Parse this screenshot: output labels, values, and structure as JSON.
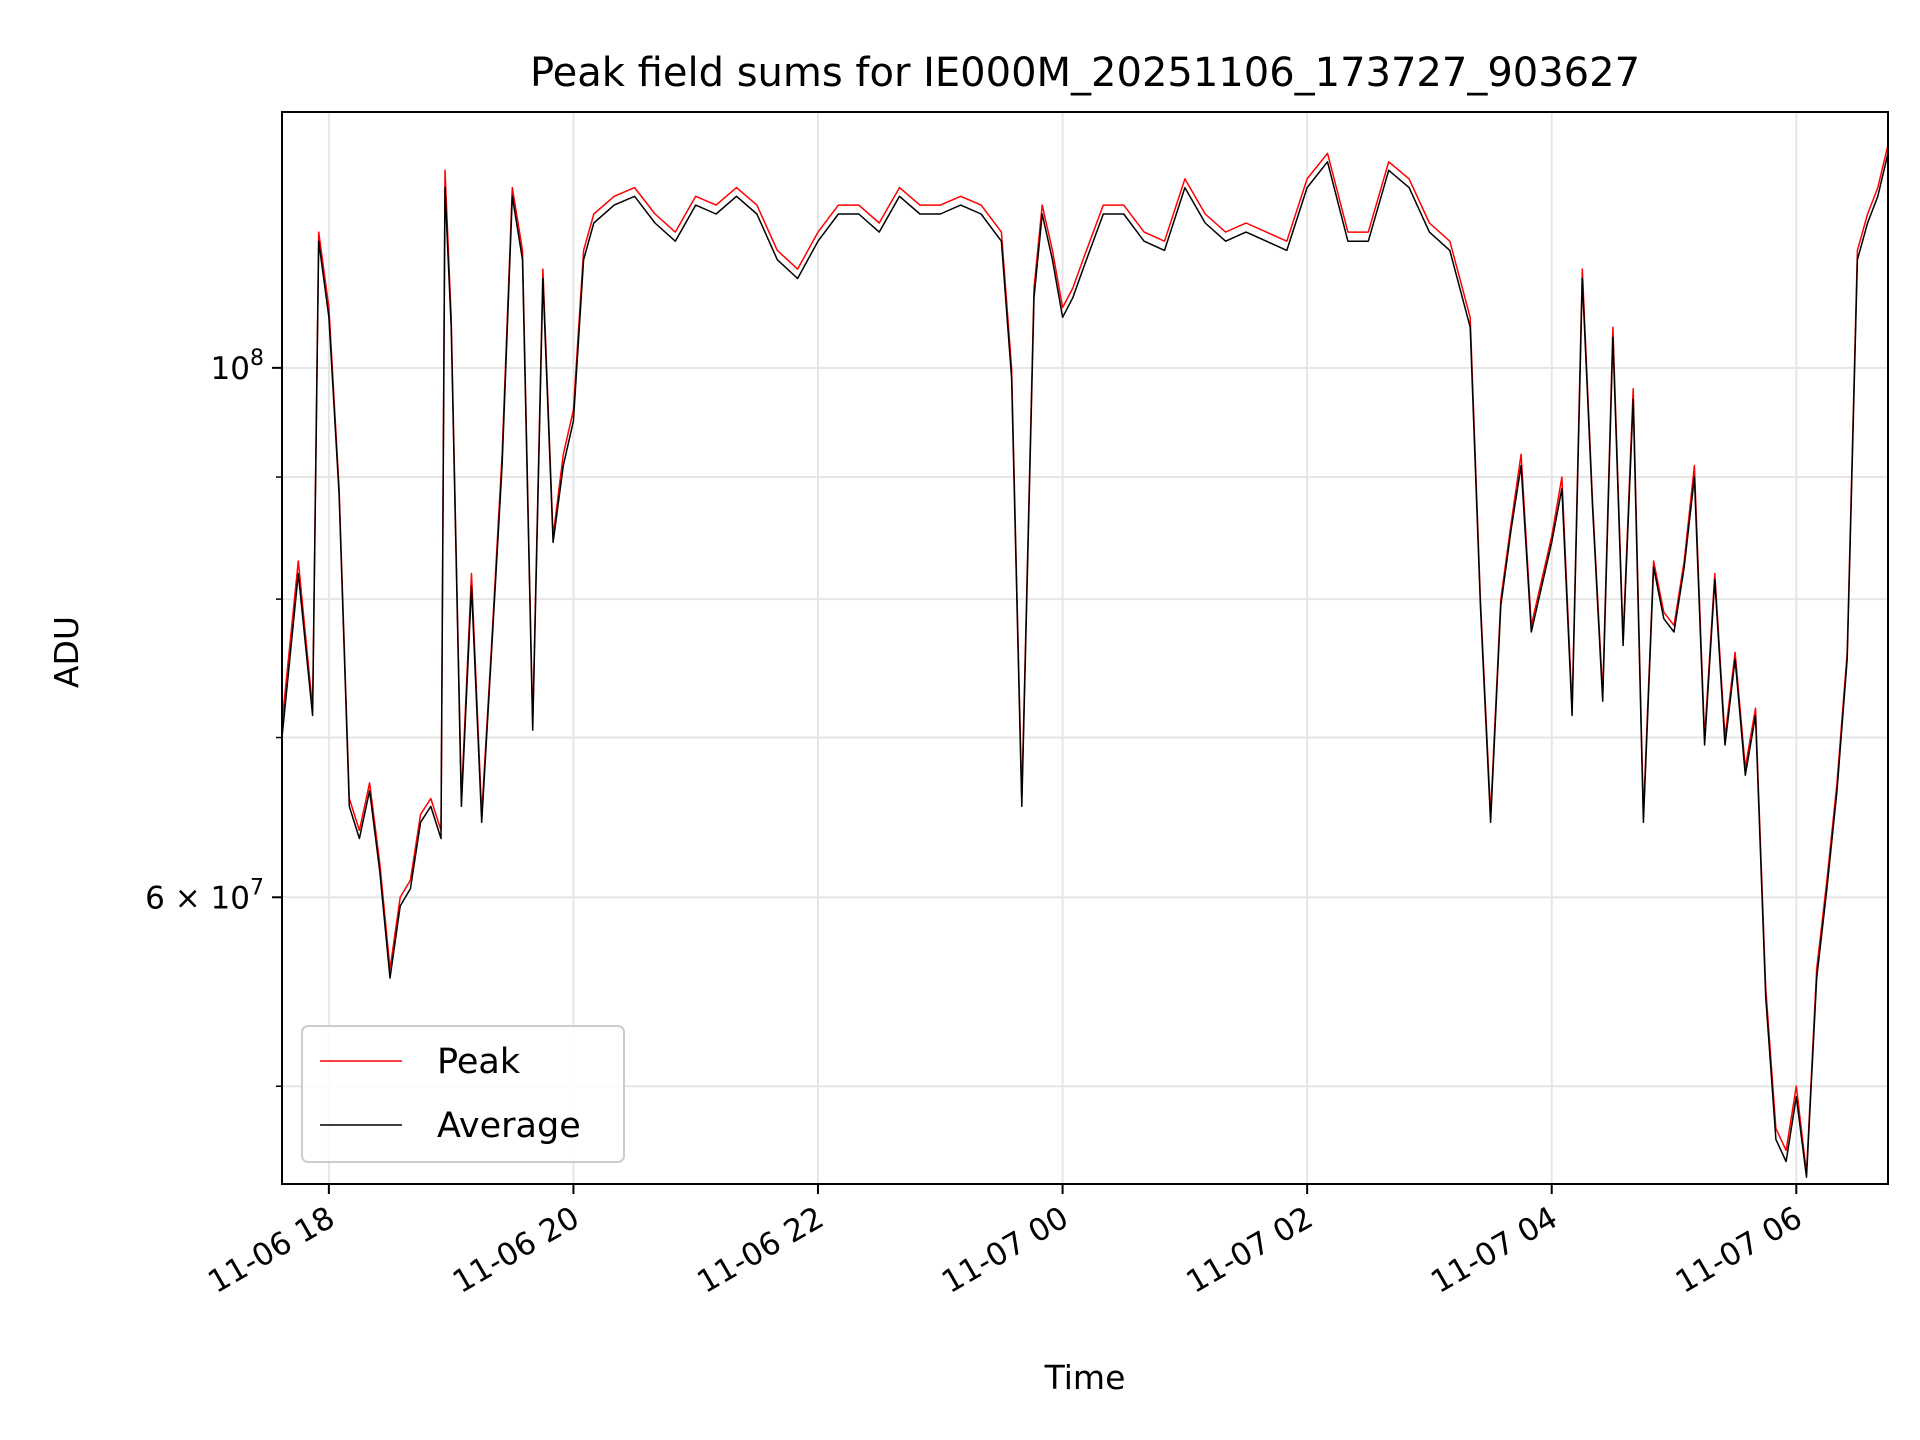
{
  "chart_data": {
    "type": "line",
    "title": "Peak field sums for IE000M_20251106_173727_903627",
    "xlabel": "Time",
    "ylabel": "ADU",
    "x_axis": {
      "kind": "datetime",
      "range": [
        "2025-11-06 17:37",
        "2025-11-07 06:45"
      ],
      "tick_labels": [
        "11-06 18",
        "11-06 20",
        "11-06 22",
        "11-07 00",
        "11-07 02",
        "11-07 04",
        "11-07 06"
      ],
      "tick_times": [
        "2025-11-06 18:00",
        "2025-11-06 20:00",
        "2025-11-06 22:00",
        "2025-11-07 00:00",
        "2025-11-07 02:00",
        "2025-11-07 04:00",
        "2025-11-07 06:00"
      ]
    },
    "y_axis": {
      "scale": "log",
      "range": [
        45500000,
        128000000
      ],
      "major_ticks": [
        {
          "value": 100000000,
          "label_base": "10",
          "label_exp": "8"
        },
        {
          "value": 60000000,
          "label_base": "6 × 10",
          "label_exp": "7"
        }
      ],
      "minor_ticks": [
        50000000,
        70000000,
        80000000,
        90000000
      ]
    },
    "grid": true,
    "legend": {
      "placement": "lower-left"
    },
    "series": [
      {
        "name": "Peak",
        "color": "#ff0000",
        "x": [
          "2025-11-06 17:37",
          "2025-11-06 17:45",
          "2025-11-06 17:52",
          "2025-11-06 17:55",
          "2025-11-06 18:00",
          "2025-11-06 18:05",
          "2025-11-06 18:10",
          "2025-11-06 18:15",
          "2025-11-06 18:20",
          "2025-11-06 18:25",
          "2025-11-06 18:30",
          "2025-11-06 18:35",
          "2025-11-06 18:40",
          "2025-11-06 18:45",
          "2025-11-06 18:50",
          "2025-11-06 18:55",
          "2025-11-06 18:57",
          "2025-11-06 19:00",
          "2025-11-06 19:05",
          "2025-11-06 19:10",
          "2025-11-06 19:15",
          "2025-11-06 19:20",
          "2025-11-06 19:25",
          "2025-11-06 19:30",
          "2025-11-06 19:35",
          "2025-11-06 19:40",
          "2025-11-06 19:45",
          "2025-11-06 19:50",
          "2025-11-06 19:55",
          "2025-11-06 20:00",
          "2025-11-06 20:05",
          "2025-11-06 20:10",
          "2025-11-06 20:20",
          "2025-11-06 20:30",
          "2025-11-06 20:40",
          "2025-11-06 20:50",
          "2025-11-06 21:00",
          "2025-11-06 21:10",
          "2025-11-06 21:20",
          "2025-11-06 21:30",
          "2025-11-06 21:40",
          "2025-11-06 21:50",
          "2025-11-06 22:00",
          "2025-11-06 22:10",
          "2025-11-06 22:20",
          "2025-11-06 22:30",
          "2025-11-06 22:40",
          "2025-11-06 22:50",
          "2025-11-06 23:00",
          "2025-11-06 23:10",
          "2025-11-06 23:20",
          "2025-11-06 23:30",
          "2025-11-06 23:35",
          "2025-11-06 23:40",
          "2025-11-06 23:46",
          "2025-11-06 23:50",
          "2025-11-06 23:55",
          "2025-11-07 00:00",
          "2025-11-07 00:05",
          "2025-11-07 00:10",
          "2025-11-07 00:20",
          "2025-11-07 00:30",
          "2025-11-07 00:40",
          "2025-11-07 00:50",
          "2025-11-07 01:00",
          "2025-11-07 01:10",
          "2025-11-07 01:20",
          "2025-11-07 01:30",
          "2025-11-07 01:40",
          "2025-11-07 01:50",
          "2025-11-07 02:00",
          "2025-11-07 02:10",
          "2025-11-07 02:20",
          "2025-11-07 02:30",
          "2025-11-07 02:40",
          "2025-11-07 02:50",
          "2025-11-07 03:00",
          "2025-11-07 03:10",
          "2025-11-07 03:20",
          "2025-11-07 03:25",
          "2025-11-07 03:30",
          "2025-11-07 03:35",
          "2025-11-07 03:40",
          "2025-11-07 03:45",
          "2025-11-07 03:50",
          "2025-11-07 04:00",
          "2025-11-07 04:05",
          "2025-11-07 04:10",
          "2025-11-07 04:15",
          "2025-11-07 04:20",
          "2025-11-07 04:25",
          "2025-11-07 04:30",
          "2025-11-07 04:35",
          "2025-11-07 04:40",
          "2025-11-07 04:45",
          "2025-11-07 04:50",
          "2025-11-07 04:55",
          "2025-11-07 05:00",
          "2025-11-07 05:05",
          "2025-11-07 05:10",
          "2025-11-07 05:15",
          "2025-11-07 05:20",
          "2025-11-07 05:25",
          "2025-11-07 05:30",
          "2025-11-07 05:35",
          "2025-11-07 05:40",
          "2025-11-07 05:45",
          "2025-11-07 05:50",
          "2025-11-07 05:55",
          "2025-11-07 06:00",
          "2025-11-07 06:05",
          "2025-11-07 06:10",
          "2025-11-07 06:15",
          "2025-11-07 06:20",
          "2025-11-07 06:25",
          "2025-11-07 06:30",
          "2025-11-07 06:35",
          "2025-11-07 06:40",
          "2025-11-07 06:45"
        ],
        "values": [
          71000000,
          83000000,
          72000000,
          114000000,
          106000000,
          89000000,
          66000000,
          64000000,
          67000000,
          62000000,
          56000000,
          60000000,
          61000000,
          65000000,
          66000000,
          64000000,
          121000000,
          105000000,
          66000000,
          82000000,
          65000000,
          77000000,
          92000000,
          119000000,
          112000000,
          71000000,
          110000000,
          85000000,
          92000000,
          96000000,
          112000000,
          116000000,
          118000000,
          119000000,
          116000000,
          114000000,
          118000000,
          117000000,
          119000000,
          117000000,
          112000000,
          110000000,
          114000000,
          117000000,
          117000000,
          115000000,
          119000000,
          117000000,
          117000000,
          118000000,
          117000000,
          114000000,
          100000000,
          66000000,
          108000000,
          117000000,
          112000000,
          106000000,
          108000000,
          111000000,
          117000000,
          117000000,
          114000000,
          113000000,
          120000000,
          116000000,
          114000000,
          115000000,
          114000000,
          113000000,
          120000000,
          123000000,
          114000000,
          114000000,
          122000000,
          120000000,
          115000000,
          113000000,
          105000000,
          80000000,
          65000000,
          80000000,
          86000000,
          92000000,
          78000000,
          85000000,
          90000000,
          72000000,
          110000000,
          88000000,
          73000000,
          104000000,
          77000000,
          98000000,
          65000000,
          83000000,
          79000000,
          78000000,
          83000000,
          91000000,
          70000000,
          82000000,
          70000000,
          76000000,
          68000000,
          72000000,
          55000000,
          48000000,
          47000000,
          50000000,
          46000000,
          56000000,
          61000000,
          67000000,
          76000000,
          112000000,
          116000000,
          119000000,
          124000000
        ]
      },
      {
        "name": "Average",
        "color": "#000000",
        "x": [
          "2025-11-06 17:37",
          "2025-11-06 17:45",
          "2025-11-06 17:52",
          "2025-11-06 17:55",
          "2025-11-06 18:00",
          "2025-11-06 18:05",
          "2025-11-06 18:10",
          "2025-11-06 18:15",
          "2025-11-06 18:20",
          "2025-11-06 18:25",
          "2025-11-06 18:30",
          "2025-11-06 18:35",
          "2025-11-06 18:40",
          "2025-11-06 18:45",
          "2025-11-06 18:50",
          "2025-11-06 18:55",
          "2025-11-06 18:57",
          "2025-11-06 19:00",
          "2025-11-06 19:05",
          "2025-11-06 19:10",
          "2025-11-06 19:15",
          "2025-11-06 19:20",
          "2025-11-06 19:25",
          "2025-11-06 19:30",
          "2025-11-06 19:35",
          "2025-11-06 19:40",
          "2025-11-06 19:45",
          "2025-11-06 19:50",
          "2025-11-06 19:55",
          "2025-11-06 20:00",
          "2025-11-06 20:05",
          "2025-11-06 20:10",
          "2025-11-06 20:20",
          "2025-11-06 20:30",
          "2025-11-06 20:40",
          "2025-11-06 20:50",
          "2025-11-06 21:00",
          "2025-11-06 21:10",
          "2025-11-06 21:20",
          "2025-11-06 21:30",
          "2025-11-06 21:40",
          "2025-11-06 21:50",
          "2025-11-06 22:00",
          "2025-11-06 22:10",
          "2025-11-06 22:20",
          "2025-11-06 22:30",
          "2025-11-06 22:40",
          "2025-11-06 22:50",
          "2025-11-06 23:00",
          "2025-11-06 23:10",
          "2025-11-06 23:20",
          "2025-11-06 23:30",
          "2025-11-06 23:35",
          "2025-11-06 23:40",
          "2025-11-06 23:46",
          "2025-11-06 23:50",
          "2025-11-06 23:55",
          "2025-11-07 00:00",
          "2025-11-07 00:05",
          "2025-11-07 00:10",
          "2025-11-07 00:20",
          "2025-11-07 00:30",
          "2025-11-07 00:40",
          "2025-11-07 00:50",
          "2025-11-07 01:00",
          "2025-11-07 01:10",
          "2025-11-07 01:20",
          "2025-11-07 01:30",
          "2025-11-07 01:40",
          "2025-11-07 01:50",
          "2025-11-07 02:00",
          "2025-11-07 02:10",
          "2025-11-07 02:20",
          "2025-11-07 02:30",
          "2025-11-07 02:40",
          "2025-11-07 02:50",
          "2025-11-07 03:00",
          "2025-11-07 03:10",
          "2025-11-07 03:20",
          "2025-11-07 03:25",
          "2025-11-07 03:30",
          "2025-11-07 03:35",
          "2025-11-07 03:40",
          "2025-11-07 03:45",
          "2025-11-07 03:50",
          "2025-11-07 04:00",
          "2025-11-07 04:05",
          "2025-11-07 04:10",
          "2025-11-07 04:15",
          "2025-11-07 04:20",
          "2025-11-07 04:25",
          "2025-11-07 04:30",
          "2025-11-07 04:35",
          "2025-11-07 04:40",
          "2025-11-07 04:45",
          "2025-11-07 04:50",
          "2025-11-07 04:55",
          "2025-11-07 05:00",
          "2025-11-07 05:05",
          "2025-11-07 05:10",
          "2025-11-07 05:15",
          "2025-11-07 05:20",
          "2025-11-07 05:25",
          "2025-11-07 05:30",
          "2025-11-07 05:35",
          "2025-11-07 05:40",
          "2025-11-07 05:45",
          "2025-11-07 05:50",
          "2025-11-07 05:55",
          "2025-11-07 06:00",
          "2025-11-07 06:05",
          "2025-11-07 06:10",
          "2025-11-07 06:15",
          "2025-11-07 06:20",
          "2025-11-07 06:25",
          "2025-11-07 06:30",
          "2025-11-07 06:35",
          "2025-11-07 06:40",
          "2025-11-07 06:45"
        ],
        "values": [
          70000000,
          82000000,
          71500000,
          113000000,
          105000000,
          88500000,
          65500000,
          63500000,
          66500000,
          61500000,
          55500000,
          59500000,
          60500000,
          64500000,
          65500000,
          63500000,
          119000000,
          104000000,
          65500000,
          81000000,
          64500000,
          76500000,
          91000000,
          118000000,
          111000000,
          70500000,
          109000000,
          84500000,
          91000000,
          95000000,
          111000000,
          115000000,
          117000000,
          118000000,
          115000000,
          113000000,
          117000000,
          116000000,
          118000000,
          116000000,
          111000000,
          109000000,
          113000000,
          116000000,
          116000000,
          114000000,
          118000000,
          116000000,
          116000000,
          117000000,
          116000000,
          113000000,
          99000000,
          65500000,
          107000000,
          116000000,
          111000000,
          105000000,
          107000000,
          110000000,
          116000000,
          116000000,
          113000000,
          112000000,
          119000000,
          115000000,
          113000000,
          114000000,
          113000000,
          112000000,
          119000000,
          122000000,
          113000000,
          113000000,
          121000000,
          119000000,
          114000000,
          112000000,
          104000000,
          79500000,
          64500000,
          79500000,
          85500000,
          91000000,
          77500000,
          84500000,
          89000000,
          71500000,
          109000000,
          87500000,
          72500000,
          103000000,
          76500000,
          97000000,
          64500000,
          82500000,
          78500000,
          77500000,
          82500000,
          90000000,
          69500000,
          81500000,
          69500000,
          75500000,
          67500000,
          71500000,
          54500000,
          47500000,
          46500000,
          49500000,
          45800000,
          55500000,
          60500000,
          66500000,
          75500000,
          111000000,
          115000000,
          118000000,
          123000000
        ]
      }
    ]
  }
}
